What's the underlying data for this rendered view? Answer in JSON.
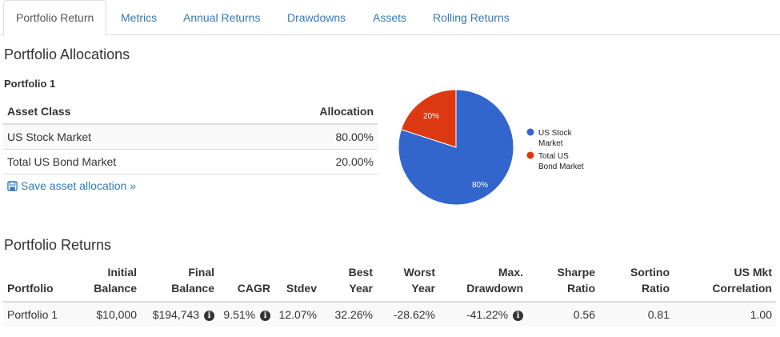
{
  "tabs": [
    {
      "label": "Portfolio Return",
      "active": true
    },
    {
      "label": "Metrics"
    },
    {
      "label": "Annual Returns"
    },
    {
      "label": "Drawdowns"
    },
    {
      "label": "Assets"
    },
    {
      "label": "Rolling Returns"
    }
  ],
  "allocations": {
    "title": "Portfolio Allocations",
    "portfolio_name": "Portfolio 1",
    "columns": [
      "Asset Class",
      "Allocation"
    ],
    "rows": [
      {
        "asset": "US Stock Market",
        "allocation": "80.00%"
      },
      {
        "asset": "Total US Bond Market",
        "allocation": "20.00%"
      }
    ],
    "save_label": "Save asset allocation »"
  },
  "pie": {
    "slices": [
      {
        "label": "80%",
        "legend": [
          "US Stock",
          "Market"
        ],
        "value": 80,
        "color": "#3366cc"
      },
      {
        "label": "20%",
        "legend": [
          "Total US",
          "Bond Market"
        ],
        "value": 20,
        "color": "#dc3912"
      }
    ]
  },
  "returns": {
    "title": "Portfolio Returns",
    "columns": [
      [
        "",
        "Portfolio"
      ],
      [
        "Initial",
        "Balance"
      ],
      [
        "Final",
        "Balance"
      ],
      [
        "",
        "CAGR"
      ],
      [
        "",
        "Stdev"
      ],
      [
        "Best",
        "Year"
      ],
      [
        "Worst",
        "Year"
      ],
      [
        "Max.",
        "Drawdown"
      ],
      [
        "Sharpe",
        "Ratio"
      ],
      [
        "Sortino",
        "Ratio"
      ],
      [
        "US Mkt",
        "Correlation"
      ]
    ],
    "row": {
      "portfolio": "Portfolio 1",
      "initial_balance": "$10,000",
      "final_balance": "$194,743",
      "cagr": "9.51%",
      "stdev": "12.07%",
      "best_year": "32.26%",
      "worst_year": "-28.62%",
      "max_drawdown": "-41.22%",
      "sharpe": "0.56",
      "sortino": "0.81",
      "us_mkt_corr": "1.00"
    },
    "info_icon": "i"
  }
}
